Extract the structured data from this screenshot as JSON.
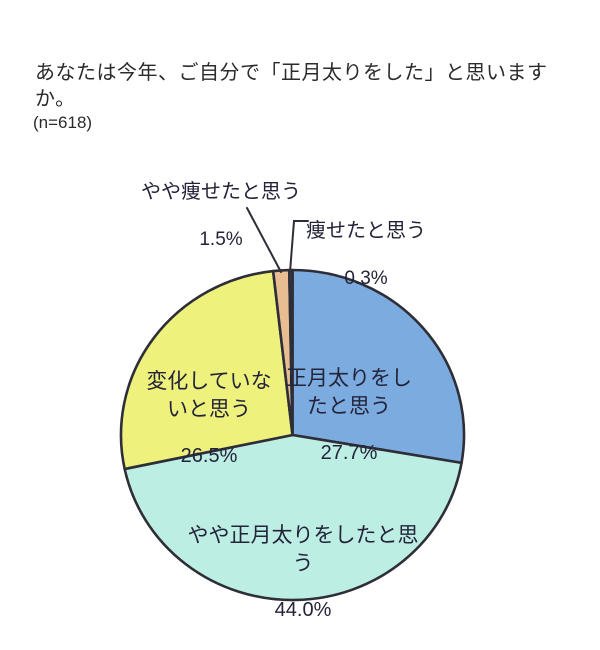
{
  "header": {
    "title": "あなたは今年、ご自分で「正月太りをした」と思いますか。",
    "sample_size": "(n=618)"
  },
  "chart_data": {
    "type": "pie",
    "title": "あなたは今年、ご自分で「正月太りをした」と思いますか。",
    "sample_size_label": "(n=618)",
    "n": 618,
    "unit": "%",
    "start_angle_deg": 0,
    "direction": "clockwise",
    "legend_position": "none",
    "slices": [
      {
        "label": "正月太りをしたと思う",
        "value": 27.7,
        "pct_label": "27.7%",
        "color": "#7cabdf",
        "display": "正月太りをし\nたと思う",
        "label_placement": "inside"
      },
      {
        "label": "やや正月太りをしたと思う",
        "value": 44.0,
        "pct_label": "44.0%",
        "color": "#bdeee3",
        "display": "やや正月太りをしたと思\nう",
        "label_placement": "inside"
      },
      {
        "label": "変化していないと思う",
        "value": 26.5,
        "pct_label": "26.5%",
        "color": "#eff17d",
        "display": "変化していな\nいと思う",
        "label_placement": "inside"
      },
      {
        "label": "やや痩せたと思う",
        "value": 1.5,
        "pct_label": "1.5%",
        "color": "#e8bd92",
        "display": "やや痩せたと思う",
        "label_placement": "outside"
      },
      {
        "label": "痩せたと思う",
        "value": 0.3,
        "pct_label": "0.3%",
        "color": "#43435a",
        "display": "痩せたと思う",
        "label_placement": "outside"
      }
    ],
    "outline_color": "#2e2e38",
    "text_color": "#23233a"
  }
}
